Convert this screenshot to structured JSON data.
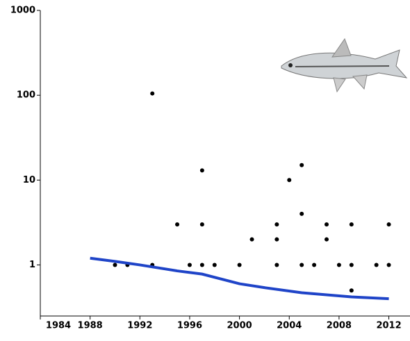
{
  "chart_data": {
    "type": "scatter",
    "log_y": true,
    "xlim": [
      1984,
      2013.7
    ],
    "xticks": [
      1984,
      1988,
      1992,
      1996,
      2000,
      2004,
      2008,
      2012
    ],
    "ylim": [
      0.25,
      1000
    ],
    "yticks": [
      1,
      10,
      100,
      1000
    ],
    "series": [
      {
        "type": "scatter",
        "color": "#000000",
        "x": [
          1990,
          1991,
          1993,
          1993,
          1995,
          1996,
          1997,
          1997,
          1997,
          1998,
          2000,
          2001,
          2003,
          2003,
          2003,
          2004,
          2005,
          2005,
          2005,
          2006,
          2007,
          2007,
          2008,
          2009,
          2009,
          2009,
          2011,
          2012,
          2012
        ],
        "values": [
          1,
          1,
          105,
          1,
          3,
          1,
          13,
          3,
          1,
          1,
          1,
          2,
          3,
          2,
          1,
          10,
          15,
          4,
          1,
          1,
          3,
          2,
          1,
          3,
          1,
          0.5,
          1,
          3,
          1
        ]
      },
      {
        "type": "line",
        "color": "#1f44c8",
        "x": [
          1988,
          1990,
          1992,
          1995,
          1997,
          2000,
          2002,
          2005,
          2009,
          2012
        ],
        "values": [
          1.2,
          1.1,
          1.0,
          0.85,
          0.78,
          0.6,
          0.54,
          0.47,
          0.42,
          0.4
        ]
      }
    ]
  }
}
